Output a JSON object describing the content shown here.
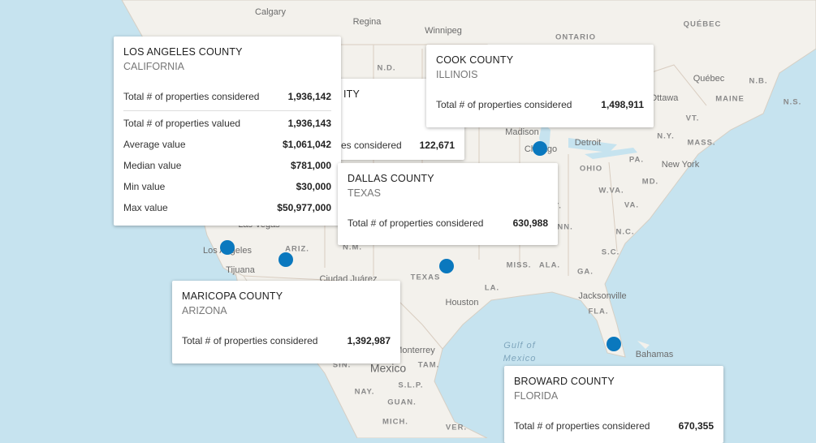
{
  "map": {
    "labels": [
      {
        "text": "Calgary",
        "kind": "city"
      },
      {
        "text": "Regina",
        "kind": "city"
      },
      {
        "text": "Winnipeg",
        "kind": "city"
      },
      {
        "text": "ONTARIO",
        "kind": "region"
      },
      {
        "text": "QUÉBEC",
        "kind": "region"
      },
      {
        "text": "Québec",
        "kind": "city"
      },
      {
        "text": "N.B.",
        "kind": "region"
      },
      {
        "text": "N.S.",
        "kind": "region"
      },
      {
        "text": "MAINE",
        "kind": "region"
      },
      {
        "text": "Ottawa",
        "kind": "city"
      },
      {
        "text": "VT.",
        "kind": "region"
      },
      {
        "text": "N.Y.",
        "kind": "region"
      },
      {
        "text": "MASS.",
        "kind": "region"
      },
      {
        "text": "Detroit",
        "kind": "city"
      },
      {
        "text": "Madison",
        "kind": "city"
      },
      {
        "text": "Chicago",
        "kind": "city"
      },
      {
        "text": "OHIO",
        "kind": "region"
      },
      {
        "text": "PA.",
        "kind": "region"
      },
      {
        "text": "New York",
        "kind": "city"
      },
      {
        "text": "MD.",
        "kind": "region"
      },
      {
        "text": "W.VA.",
        "kind": "region"
      },
      {
        "text": "VA.",
        "kind": "region"
      },
      {
        "text": "KY.",
        "kind": "region"
      },
      {
        "text": "TENN.",
        "kind": "region"
      },
      {
        "text": "N.C.",
        "kind": "region"
      },
      {
        "text": "S.C.",
        "kind": "region"
      },
      {
        "text": "MISS.",
        "kind": "region"
      },
      {
        "text": "ALA.",
        "kind": "region"
      },
      {
        "text": "GA.",
        "kind": "region"
      },
      {
        "text": "LA.",
        "kind": "region"
      },
      {
        "text": "TEXAS",
        "kind": "region"
      },
      {
        "text": "Houston",
        "kind": "city"
      },
      {
        "text": "Jacksonville",
        "kind": "city"
      },
      {
        "text": "FLA.",
        "kind": "region"
      },
      {
        "text": "Gulf of",
        "kind": "water"
      },
      {
        "text": "Mexico",
        "kind": "water"
      },
      {
        "text": "Bahamas",
        "kind": "city"
      },
      {
        "text": "Mexico",
        "kind": "country"
      },
      {
        "text": "Monterrey",
        "kind": "city"
      },
      {
        "text": "TAM.",
        "kind": "region"
      },
      {
        "text": "S.L.P.",
        "kind": "region"
      },
      {
        "text": "NAY.",
        "kind": "region"
      },
      {
        "text": "GUAN.",
        "kind": "region"
      },
      {
        "text": "MICH.",
        "kind": "region"
      },
      {
        "text": "VER.",
        "kind": "region"
      },
      {
        "text": "Los Angeles",
        "kind": "city"
      },
      {
        "text": "Tijuana",
        "kind": "city"
      },
      {
        "text": "ARIZ.",
        "kind": "region"
      },
      {
        "text": "Ciudad Juárez",
        "kind": "city"
      },
      {
        "text": "N.D.",
        "kind": "region"
      },
      {
        "text": "N.M.",
        "kind": "region"
      },
      {
        "text": "SIN.",
        "kind": "region"
      },
      {
        "text": "Las Vegas",
        "kind": "city"
      }
    ]
  },
  "popups": [
    {
      "title": "ITY",
      "rows": [
        {
          "label": "es considered",
          "value": "122,671"
        }
      ]
    },
    {
      "title": "LOS ANGELES COUNTY",
      "subtitle": "CALIFORNIA",
      "rows": [
        {
          "label": "Total # of properties considered",
          "value": "1,936,142"
        },
        {
          "label": "Total # of properties valued",
          "value": "1,936,143"
        },
        {
          "label": "Average value",
          "value": "$1,061,042"
        },
        {
          "label": "Median value",
          "value": "$781,000"
        },
        {
          "label": "Min value",
          "value": "$30,000"
        },
        {
          "label": "Max value",
          "value": "$50,977,000"
        }
      ]
    },
    {
      "title": "COOK COUNTY",
      "subtitle": "ILLINOIS",
      "rows": [
        {
          "label": "Total # of properties considered",
          "value": "1,498,911"
        }
      ]
    },
    {
      "title": "DALLAS COUNTY",
      "subtitle": "TEXAS",
      "rows": [
        {
          "label": "Total # of properties considered",
          "value": "630,988"
        }
      ]
    },
    {
      "title": "MARICOPA COUNTY",
      "subtitle": "ARIZONA",
      "rows": [
        {
          "label": "Total # of properties considered",
          "value": "1,392,987"
        }
      ]
    },
    {
      "title": "BROWARD COUNTY",
      "subtitle": "FLORIDA",
      "rows": [
        {
          "label": "Total # of properties considered",
          "value": "670,355"
        }
      ]
    }
  ]
}
